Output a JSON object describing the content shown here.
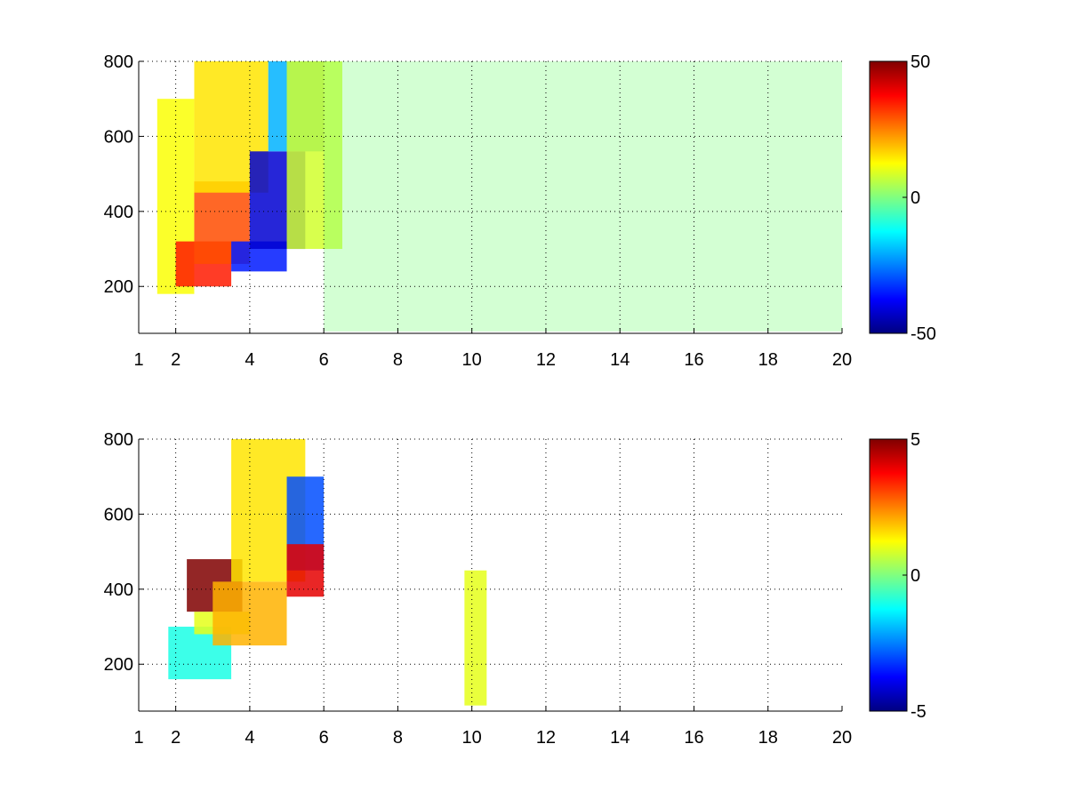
{
  "chart_data": [
    {
      "type": "heatmap",
      "title": "",
      "xlabel": "",
      "ylabel": "",
      "xlim": [
        1,
        20
      ],
      "ylim": [
        75,
        800
      ],
      "grid": true,
      "xticks": [
        1,
        2,
        4,
        6,
        8,
        10,
        12,
        14,
        16,
        18,
        20
      ],
      "xtick_labels": [
        "1",
        "2",
        "4",
        "6",
        "8",
        "10",
        "12",
        "14",
        "16",
        "18",
        "20"
      ],
      "yticks": [
        200,
        400,
        600,
        800
      ],
      "ytick_labels": [
        "200",
        "400",
        "600",
        "800"
      ],
      "colorbar": {
        "min": -50,
        "max": 50,
        "ticks": [
          50,
          0,
          -50
        ],
        "tick_labels": [
          "50",
          "0",
          "-50"
        ],
        "colormap": "jet"
      },
      "regions": [
        {
          "x": [
            1.5,
            2.5
          ],
          "y": [
            180,
            700
          ],
          "value": 12
        },
        {
          "x": [
            2.0,
            3.5
          ],
          "y": [
            200,
            320
          ],
          "value": 35
        },
        {
          "x": [
            2.5,
            4.0
          ],
          "y": [
            260,
            480
          ],
          "value": 30
        },
        {
          "x": [
            2.5,
            4.5
          ],
          "y": [
            450,
            800
          ],
          "value": 15
        },
        {
          "x": [
            3.5,
            5.0
          ],
          "y": [
            240,
            320
          ],
          "value": -35
        },
        {
          "x": [
            4.0,
            5.5
          ],
          "y": [
            300,
            560
          ],
          "value": -42
        },
        {
          "x": [
            4.5,
            6.0
          ],
          "y": [
            560,
            800
          ],
          "value": -20
        },
        {
          "x": [
            5.0,
            6.5
          ],
          "y": [
            300,
            800
          ],
          "value": 8
        },
        {
          "x": [
            6.0,
            20.0
          ],
          "y": [
            80,
            800
          ],
          "value": 0
        }
      ]
    },
    {
      "type": "heatmap",
      "title": "",
      "xlabel": "",
      "ylabel": "",
      "xlim": [
        1,
        20
      ],
      "ylim": [
        75,
        800
      ],
      "grid": true,
      "xticks": [
        1,
        2,
        4,
        6,
        8,
        10,
        12,
        14,
        16,
        18,
        20
      ],
      "xtick_labels": [
        "1",
        "2",
        "4",
        "6",
        "8",
        "10",
        "12",
        "14",
        "16",
        "18",
        "20"
      ],
      "yticks": [
        200,
        400,
        600,
        800
      ],
      "ytick_labels": [
        "200",
        "400",
        "600",
        "800"
      ],
      "colorbar": {
        "min": -5,
        "max": 5,
        "ticks": [
          5,
          0,
          -5
        ],
        "tick_labels": [
          "5",
          "0",
          "-5"
        ],
        "colormap": "jet"
      },
      "regions": [
        {
          "x": [
            1.8,
            3.5
          ],
          "y": [
            160,
            300
          ],
          "value": -1
        },
        {
          "x": [
            2.5,
            4.0
          ],
          "y": [
            280,
            340
          ],
          "value": 1
        },
        {
          "x": [
            2.3,
            3.8
          ],
          "y": [
            340,
            480
          ],
          "value": 5
        },
        {
          "x": [
            3.0,
            5.0
          ],
          "y": [
            250,
            420
          ],
          "value": 2
        },
        {
          "x": [
            3.5,
            5.5
          ],
          "y": [
            420,
            800
          ],
          "value": 1.5
        },
        {
          "x": [
            5.0,
            6.0
          ],
          "y": [
            450,
            700
          ],
          "value": -3
        },
        {
          "x": [
            5.0,
            6.0
          ],
          "y": [
            380,
            520
          ],
          "value": 4
        },
        {
          "x": [
            9.8,
            10.4
          ],
          "y": [
            90,
            450
          ],
          "value": 1
        }
      ]
    }
  ]
}
